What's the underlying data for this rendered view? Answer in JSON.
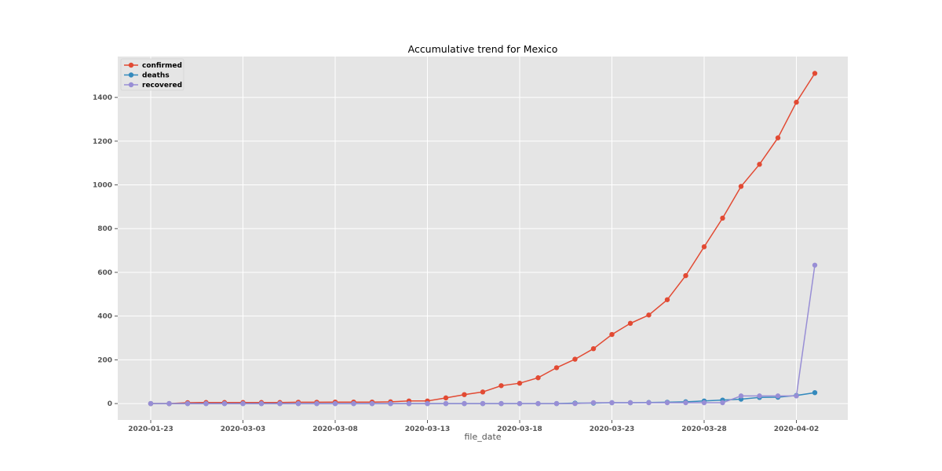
{
  "chart_data": {
    "type": "line",
    "title": "Accumulative trend for Mexico",
    "xlabel": "file_date",
    "ylabel": "",
    "x": [
      "2020-01-23",
      "2020-02-28",
      "2020-02-29",
      "2020-03-01",
      "2020-03-02",
      "2020-03-03",
      "2020-03-04",
      "2020-03-05",
      "2020-03-06",
      "2020-03-07",
      "2020-03-08",
      "2020-03-09",
      "2020-03-10",
      "2020-03-11",
      "2020-03-12",
      "2020-03-13",
      "2020-03-14",
      "2020-03-15",
      "2020-03-16",
      "2020-03-17",
      "2020-03-18",
      "2020-03-19",
      "2020-03-20",
      "2020-03-21",
      "2020-03-22",
      "2020-03-23",
      "2020-03-24",
      "2020-03-25",
      "2020-03-26",
      "2020-03-27",
      "2020-03-28",
      "2020-03-29",
      "2020-03-30",
      "2020-03-31",
      "2020-04-01",
      "2020-04-02",
      "2020-04-03"
    ],
    "x_tick_labels": [
      "2020-01-23",
      "2020-03-03",
      "2020-03-08",
      "2020-03-13",
      "2020-03-18",
      "2020-03-23",
      "2020-03-28",
      "2020-04-02"
    ],
    "y_ticks": [
      0,
      200,
      400,
      600,
      800,
      1000,
      1200,
      1400
    ],
    "ylim": [
      -75,
      1587
    ],
    "grid": true,
    "legend_position": "top-left",
    "series": [
      {
        "name": "confirmed",
        "color": "#E24A33",
        "values": [
          0,
          0,
          4,
          5,
          5,
          5,
          5,
          5,
          6,
          6,
          7,
          7,
          7,
          8,
          12,
          12,
          26,
          41,
          53,
          82,
          93,
          118,
          164,
          203,
          251,
          316,
          367,
          405,
          475,
          585,
          717,
          848,
          993,
          1094,
          1215,
          1378,
          1510
        ]
      },
      {
        "name": "deaths",
        "color": "#348ABD",
        "values": [
          0,
          0,
          0,
          0,
          0,
          0,
          0,
          0,
          0,
          0,
          0,
          0,
          0,
          0,
          0,
          0,
          0,
          0,
          0,
          0,
          0,
          0,
          0,
          2,
          2,
          4,
          4,
          5,
          6,
          8,
          12,
          16,
          20,
          28,
          29,
          37,
          50
        ]
      },
      {
        "name": "recovered",
        "color": "#988ED5",
        "values": [
          0,
          0,
          0,
          0,
          0,
          0,
          0,
          0,
          0,
          0,
          0,
          0,
          0,
          0,
          0,
          0,
          0,
          0,
          0,
          0,
          0,
          0,
          0,
          0,
          4,
          4,
          4,
          4,
          4,
          4,
          4,
          4,
          35,
          35,
          35,
          35,
          633
        ]
      }
    ]
  }
}
